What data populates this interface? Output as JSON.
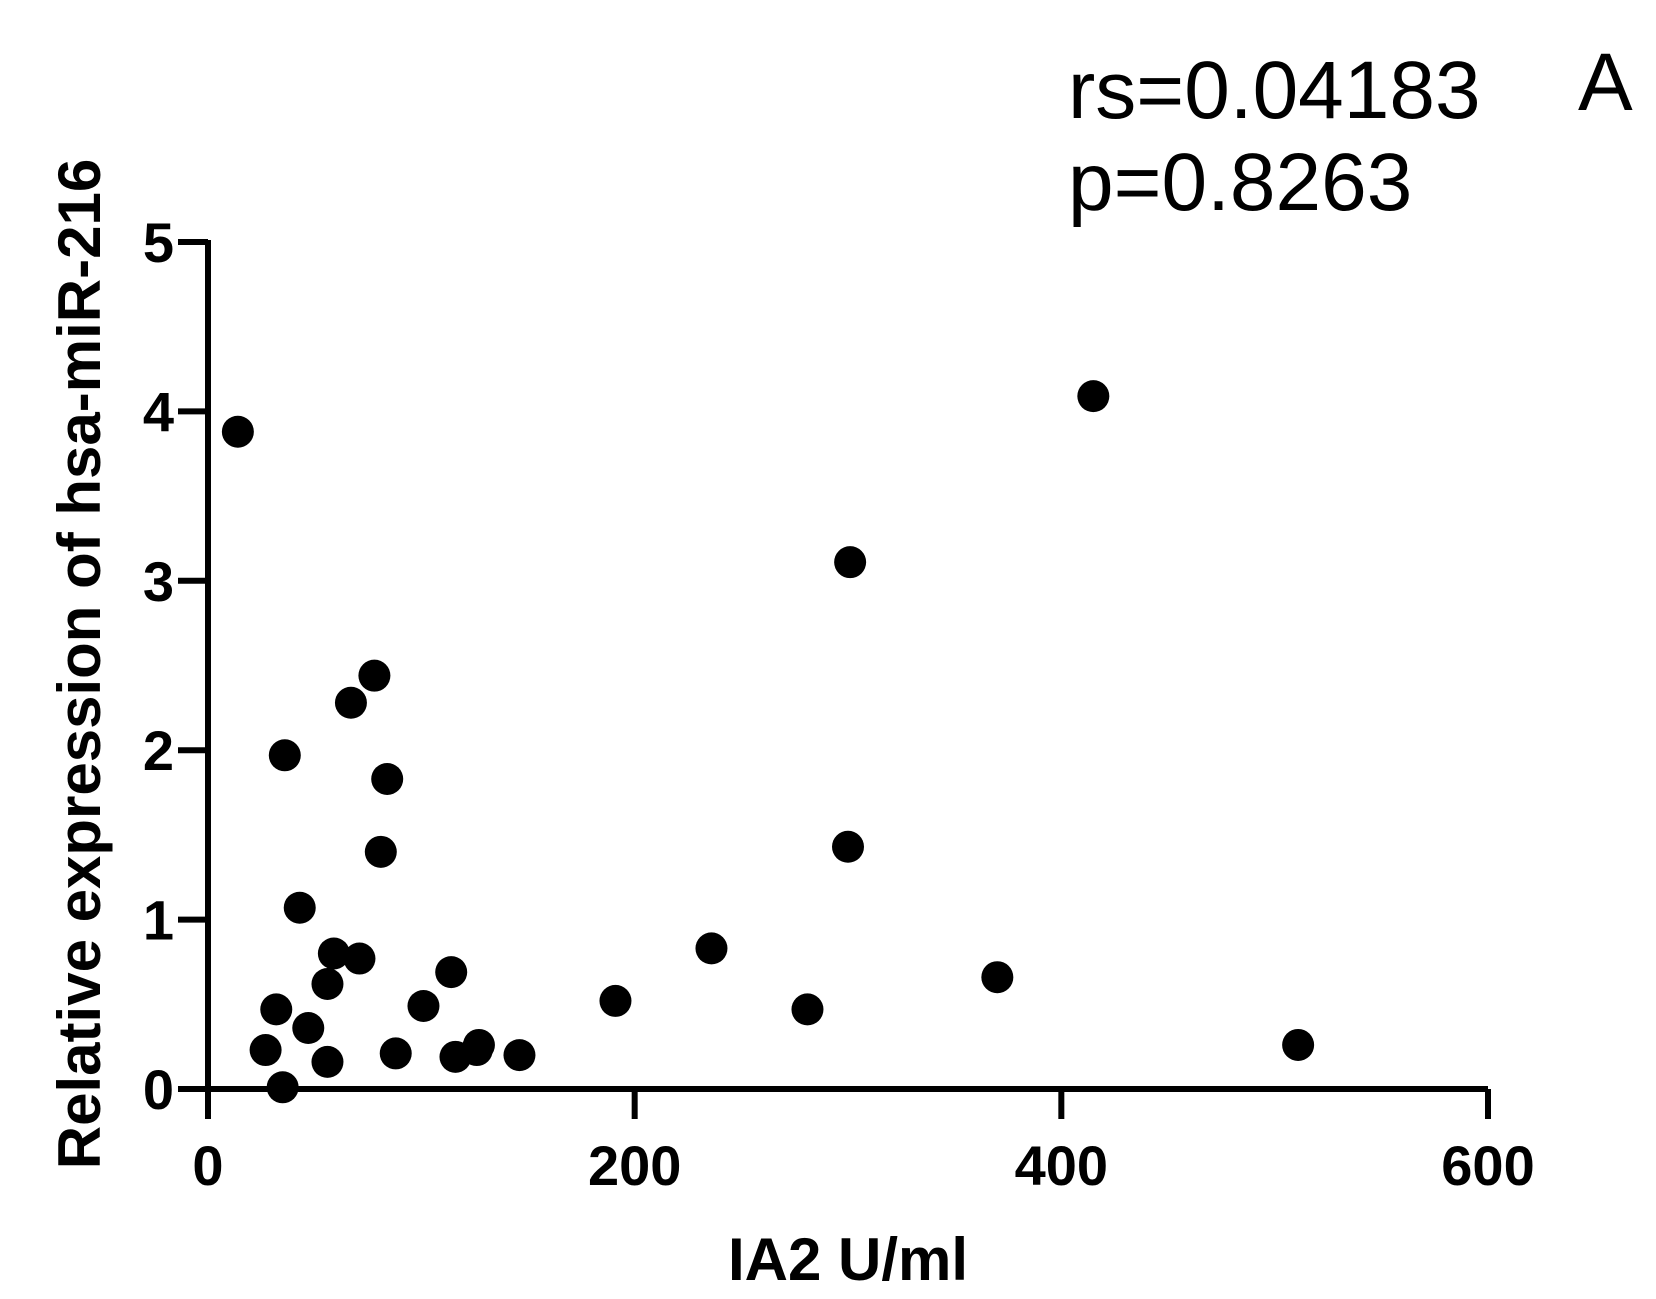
{
  "chart_data": {
    "type": "scatter",
    "panel_label": "A",
    "annotations": [
      "rs=0.04183",
      "p=0.8263"
    ],
    "xlabel": "IA2 U/ml",
    "ylabel": "Relative expression of hsa-miR-216",
    "xlim": [
      0,
      600
    ],
    "ylim": [
      0,
      5
    ],
    "x_ticks": [
      "0",
      "200",
      "400",
      "600"
    ],
    "y_ticks": [
      "0",
      "1",
      "2",
      "3",
      "4",
      "5"
    ],
    "x_tick_values": [
      0,
      200,
      400,
      600
    ],
    "y_tick_values": [
      0,
      1,
      2,
      3,
      4,
      5
    ],
    "grid": false,
    "legend": "none",
    "points": [
      {
        "x": 14,
        "y": 3.88
      },
      {
        "x": 27,
        "y": 0.23
      },
      {
        "x": 32,
        "y": 0.47
      },
      {
        "x": 35,
        "y": 0.01
      },
      {
        "x": 36,
        "y": 1.97
      },
      {
        "x": 43,
        "y": 1.07
      },
      {
        "x": 47,
        "y": 0.36
      },
      {
        "x": 56,
        "y": 0.16
      },
      {
        "x": 56,
        "y": 0.62
      },
      {
        "x": 59,
        "y": 0.8
      },
      {
        "x": 67,
        "y": 2.28
      },
      {
        "x": 71,
        "y": 0.77
      },
      {
        "x": 78,
        "y": 2.44
      },
      {
        "x": 81,
        "y": 1.4
      },
      {
        "x": 84,
        "y": 1.83
      },
      {
        "x": 88,
        "y": 0.21
      },
      {
        "x": 101,
        "y": 0.49
      },
      {
        "x": 114,
        "y": 0.69
      },
      {
        "x": 116,
        "y": 0.19
      },
      {
        "x": 126,
        "y": 0.23
      },
      {
        "x": 127,
        "y": 0.26
      },
      {
        "x": 146,
        "y": 0.2
      },
      {
        "x": 191,
        "y": 0.52
      },
      {
        "x": 236,
        "y": 0.83
      },
      {
        "x": 281,
        "y": 0.47
      },
      {
        "x": 300,
        "y": 1.43
      },
      {
        "x": 301,
        "y": 3.11
      },
      {
        "x": 370,
        "y": 0.66
      },
      {
        "x": 415,
        "y": 4.09
      },
      {
        "x": 511,
        "y": 0.26
      }
    ]
  }
}
